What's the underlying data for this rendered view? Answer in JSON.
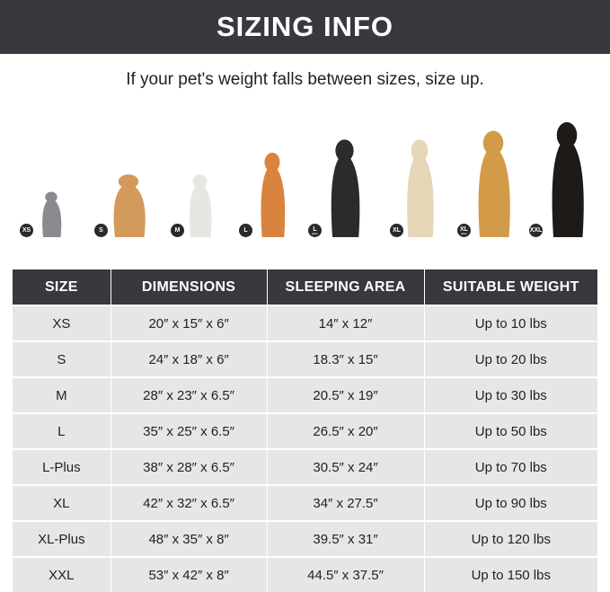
{
  "header": {
    "title": "SIZING INFO"
  },
  "subtitle": "If your pet's weight falls between sizes, size up.",
  "pets": [
    {
      "badge": "XS",
      "plus": "",
      "animal": "cat",
      "color": "#8a8a90"
    },
    {
      "badge": "S",
      "plus": "",
      "animal": "pomeranian",
      "color": "#d49a5c"
    },
    {
      "badge": "M",
      "plus": "",
      "animal": "french-bulldog",
      "color": "#e8e6e2"
    },
    {
      "badge": "L",
      "plus": "",
      "animal": "shiba-inu",
      "color": "#d9843e"
    },
    {
      "badge": "L",
      "plus": "plus",
      "animal": "border-collie",
      "color": "#2b2b2b"
    },
    {
      "badge": "XL",
      "plus": "",
      "animal": "labrador",
      "color": "#e6d6b8"
    },
    {
      "badge": "XL",
      "plus": "plus",
      "animal": "golden-retriever",
      "color": "#d39a48"
    },
    {
      "badge": "XXL",
      "plus": "",
      "animal": "doberman",
      "color": "#1e1a18"
    }
  ],
  "table": {
    "headers": [
      "SIZE",
      "DIMENSIONS",
      "SLEEPING AREA",
      "SUITABLE WEIGHT"
    ],
    "rows": [
      [
        "XS",
        "20″ x 15″ x 6″",
        "14″ x 12″",
        "Up to 10 lbs"
      ],
      [
        "S",
        "24″ x 18″ x 6″",
        "18.3″ x 15″",
        "Up to 20 lbs"
      ],
      [
        "M",
        "28″ x 23″ x 6.5″",
        "20.5″ x 19″",
        "Up to 30 lbs"
      ],
      [
        "L",
        "35″ x 25″ x 6.5″",
        "26.5″ x 20″",
        "Up to 50 lbs"
      ],
      [
        "L-Plus",
        "38″ x 28″ x 6.5″",
        "30.5″ x 24″",
        "Up to 70 lbs"
      ],
      [
        "XL",
        "42″ x 32″ x 6.5″",
        "34″ x 27.5″",
        "Up to 90 lbs"
      ],
      [
        "XL-Plus",
        "48″ x 35″ x 8″",
        "39.5″ x 31″",
        "Up to 120 lbs"
      ],
      [
        "XXL",
        "53″ x 42″ x 8″",
        "44.5″ x 37.5″",
        "Up to 150 lbs"
      ]
    ]
  }
}
